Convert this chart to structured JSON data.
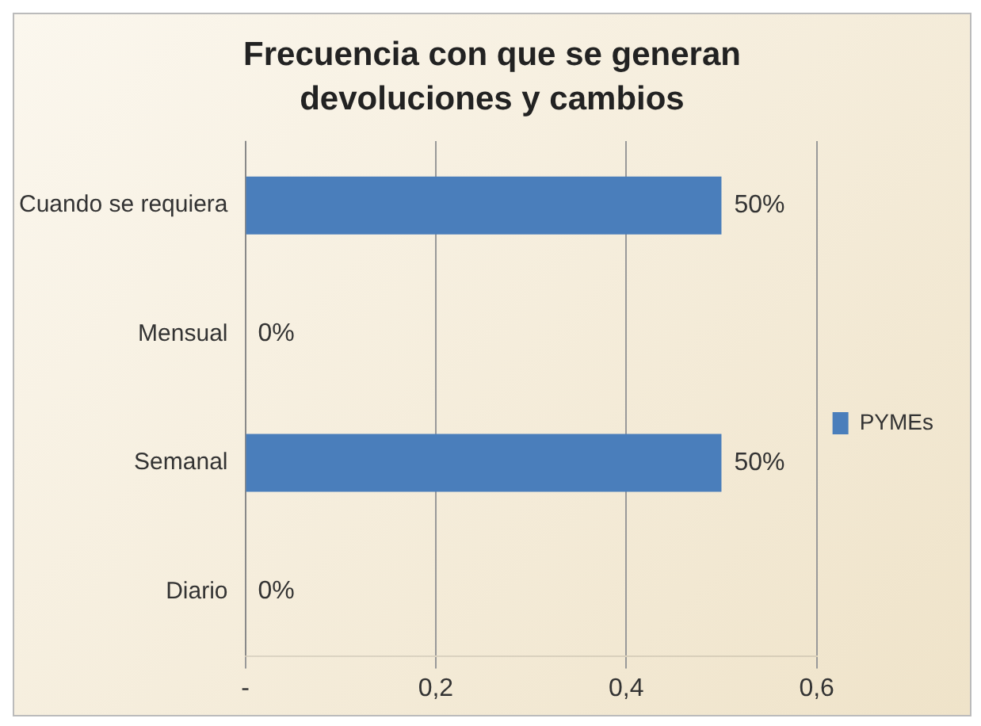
{
  "chart_data": {
    "type": "bar",
    "orientation": "horizontal",
    "title": "Frecuencia con que se generan devoluciones y cambios",
    "categories": [
      "Cuando se requiera",
      "Mensual",
      "Semanal",
      "Diario"
    ],
    "series": [
      {
        "name": "PYMEs",
        "color": "#4a7ebb",
        "values": [
          0.5,
          0,
          0.5,
          0
        ],
        "value_labels": [
          "50%",
          "0%",
          "50%",
          "0%"
        ]
      }
    ],
    "xlim": [
      0,
      0.6
    ],
    "xticks": [
      {
        "value": 0,
        "label": "-"
      },
      {
        "value": 0.2,
        "label": "0,2"
      },
      {
        "value": 0.4,
        "label": "0,4"
      },
      {
        "value": 0.6,
        "label": "0,6"
      }
    ],
    "grid": "x",
    "legend": "right"
  }
}
